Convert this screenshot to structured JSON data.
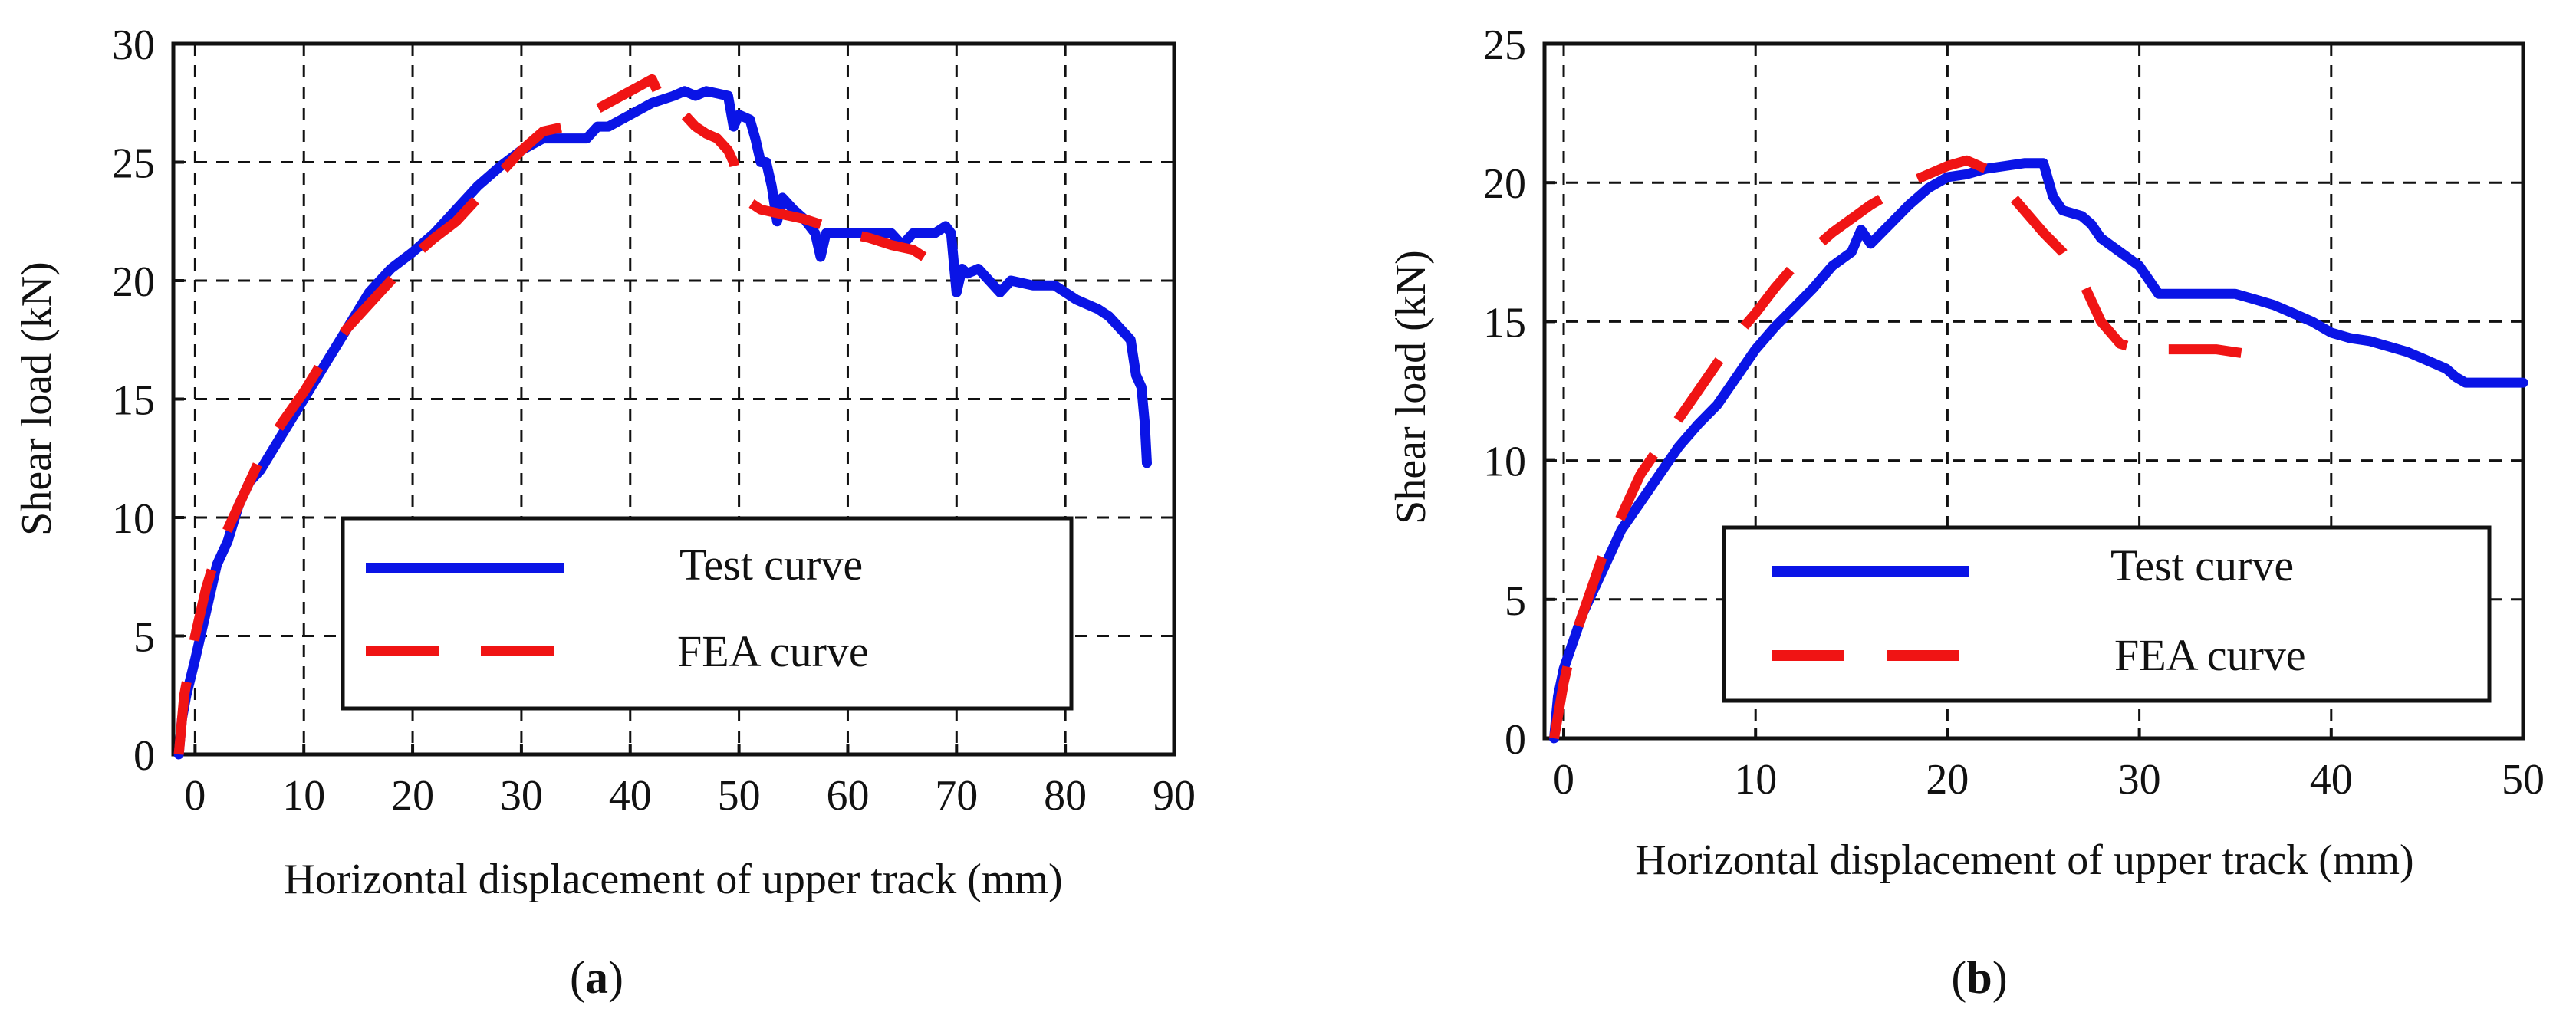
{
  "colors": {
    "test": "#0a14e6",
    "fea": "#f01414",
    "grid": "#111111",
    "axis": "#111111"
  },
  "chart_data": [
    {
      "type": "line",
      "panel_label": "a",
      "xlabel": "Horizontal displacement of upper track (mm)",
      "ylabel": "Shear load (kN)",
      "xlim": [
        -2,
        90
      ],
      "ylim": [
        0,
        30
      ],
      "xticks": [
        0,
        10,
        20,
        30,
        40,
        50,
        60,
        70,
        80,
        90
      ],
      "yticks": [
        0,
        5,
        10,
        15,
        20,
        25,
        30
      ],
      "grid": true,
      "legend_position": "bottom-right",
      "series": [
        {
          "name": "Test curve",
          "style": "solid",
          "points": [
            [
              -1.5,
              0
            ],
            [
              -1.2,
              1.5
            ],
            [
              -0.8,
              2.5
            ],
            [
              0,
              4
            ],
            [
              1,
              6
            ],
            [
              2,
              8
            ],
            [
              3,
              9
            ],
            [
              4,
              10.5
            ],
            [
              5,
              11.5
            ],
            [
              6,
              12
            ],
            [
              8,
              13.5
            ],
            [
              10,
              15
            ],
            [
              12,
              16.5
            ],
            [
              14,
              18
            ],
            [
              16,
              19.5
            ],
            [
              18,
              20.5
            ],
            [
              20,
              21.2
            ],
            [
              22,
              22
            ],
            [
              24,
              23
            ],
            [
              26,
              24
            ],
            [
              28,
              24.8
            ],
            [
              30,
              25.5
            ],
            [
              32,
              26
            ],
            [
              34,
              26
            ],
            [
              36,
              26
            ],
            [
              37,
              26.5
            ],
            [
              38,
              26.5
            ],
            [
              40,
              27
            ],
            [
              42,
              27.5
            ],
            [
              44,
              27.8
            ],
            [
              45,
              28
            ],
            [
              46,
              27.8
            ],
            [
              47,
              28
            ],
            [
              48,
              27.9
            ],
            [
              49,
              27.8
            ],
            [
              49.5,
              26.5
            ],
            [
              50,
              27
            ],
            [
              51,
              26.8
            ],
            [
              51.5,
              26
            ],
            [
              52,
              25
            ],
            [
              52.5,
              25
            ],
            [
              53,
              24
            ],
            [
              53.5,
              22.5
            ],
            [
              54,
              23.5
            ],
            [
              55,
              23
            ],
            [
              56,
              22.6
            ],
            [
              57,
              22
            ],
            [
              57.5,
              21
            ],
            [
              58,
              22
            ],
            [
              60,
              22
            ],
            [
              62,
              22
            ],
            [
              64,
              22
            ],
            [
              65,
              21.5
            ],
            [
              66,
              22
            ],
            [
              67,
              22
            ],
            [
              68,
              22
            ],
            [
              69,
              22.3
            ],
            [
              69.5,
              22
            ],
            [
              70,
              19.5
            ],
            [
              70.5,
              20.5
            ],
            [
              71,
              20.3
            ],
            [
              72,
              20.5
            ],
            [
              73,
              20
            ],
            [
              74,
              19.5
            ],
            [
              75,
              20
            ],
            [
              77,
              19.8
            ],
            [
              79,
              19.8
            ],
            [
              80,
              19.5
            ],
            [
              81,
              19.2
            ],
            [
              82,
              19
            ],
            [
              83,
              18.8
            ],
            [
              84,
              18.5
            ],
            [
              85,
              18
            ],
            [
              86,
              17.5
            ],
            [
              86.5,
              16
            ],
            [
              87,
              15.5
            ],
            [
              87.3,
              14
            ],
            [
              87.5,
              12.3
            ]
          ]
        },
        {
          "name": "FEA curve",
          "style": "dashed",
          "points": [
            [
              -1.5,
              0
            ],
            [
              -1,
              2.5
            ],
            [
              0,
              5
            ],
            [
              1,
              7
            ],
            [
              2,
              8.5
            ],
            [
              4,
              10.5
            ],
            [
              6,
              12.5
            ],
            [
              8,
              14
            ],
            [
              10,
              15.3
            ],
            [
              12,
              16.8
            ],
            [
              14,
              18
            ],
            [
              16,
              19
            ],
            [
              18,
              20
            ],
            [
              20,
              21
            ],
            [
              22,
              21.8
            ],
            [
              24,
              22.5
            ],
            [
              26,
              23.5
            ],
            [
              28,
              24.5
            ],
            [
              30,
              25.5
            ],
            [
              32,
              26.3
            ],
            [
              34,
              26.5
            ],
            [
              36,
              27
            ],
            [
              38,
              27.5
            ],
            [
              40,
              28
            ],
            [
              42,
              28.5
            ],
            [
              43,
              27.5
            ],
            [
              44,
              27
            ],
            [
              45,
              27
            ],
            [
              46,
              26.5
            ],
            [
              47,
              26.2
            ],
            [
              48,
              26
            ],
            [
              49,
              25.5
            ],
            [
              49.5,
              25
            ],
            [
              50,
              24
            ],
            [
              51,
              23.3
            ],
            [
              52,
              23
            ],
            [
              54,
              22.8
            ],
            [
              56,
              22.6
            ],
            [
              58,
              22.3
            ],
            [
              60,
              22
            ],
            [
              62,
              21.8
            ],
            [
              64,
              21.5
            ],
            [
              66,
              21.3
            ],
            [
              67,
              21
            ]
          ]
        }
      ]
    },
    {
      "type": "line",
      "panel_label": "b",
      "xlabel": "Horizontal displacement of upper track (mm)",
      "ylabel": "Shear load (kN)",
      "xlim": [
        -1,
        50
      ],
      "ylim": [
        0,
        25
      ],
      "xticks": [
        0,
        10,
        20,
        30,
        40,
        50
      ],
      "yticks": [
        0,
        5,
        10,
        15,
        20,
        25
      ],
      "grid": true,
      "legend_position": "bottom-right",
      "series": [
        {
          "name": "Test curve",
          "style": "solid",
          "points": [
            [
              -0.5,
              0
            ],
            [
              -0.3,
              1.5
            ],
            [
              0,
              2.5
            ],
            [
              0.5,
              3.5
            ],
            [
              1,
              4.5
            ],
            [
              2,
              6
            ],
            [
              3,
              7.5
            ],
            [
              4,
              8.5
            ],
            [
              5,
              9.5
            ],
            [
              6,
              10.5
            ],
            [
              7,
              11.3
            ],
            [
              8,
              12
            ],
            [
              9,
              13
            ],
            [
              10,
              14
            ],
            [
              11,
              14.8
            ],
            [
              12,
              15.5
            ],
            [
              13,
              16.2
            ],
            [
              14,
              17
            ],
            [
              15,
              17.5
            ],
            [
              15.5,
              18.3
            ],
            [
              16,
              17.8
            ],
            [
              17,
              18.5
            ],
            [
              18,
              19.2
            ],
            [
              19,
              19.8
            ],
            [
              20,
              20.2
            ],
            [
              21,
              20.3
            ],
            [
              22,
              20.5
            ],
            [
              23,
              20.6
            ],
            [
              24,
              20.7
            ],
            [
              25,
              20.7
            ],
            [
              25.5,
              19.5
            ],
            [
              26,
              19
            ],
            [
              27,
              18.8
            ],
            [
              27.5,
              18.5
            ],
            [
              28,
              18
            ],
            [
              29,
              17.5
            ],
            [
              30,
              17
            ],
            [
              30.5,
              16.5
            ],
            [
              31,
              16
            ],
            [
              32,
              16
            ],
            [
              33,
              16
            ],
            [
              35,
              16
            ],
            [
              36,
              15.8
            ],
            [
              37,
              15.6
            ],
            [
              38,
              15.3
            ],
            [
              39,
              15
            ],
            [
              40,
              14.6
            ],
            [
              41,
              14.4
            ],
            [
              42,
              14.3
            ],
            [
              43,
              14.1
            ],
            [
              44,
              13.9
            ],
            [
              45,
              13.6
            ],
            [
              46,
              13.3
            ],
            [
              46.5,
              13
            ],
            [
              47,
              12.8
            ],
            [
              48,
              12.8
            ],
            [
              49,
              12.8
            ],
            [
              50,
              12.8
            ]
          ]
        },
        {
          "name": "FEA curve",
          "style": "dashed",
          "points": [
            [
              -0.5,
              0
            ],
            [
              0,
              2
            ],
            [
              0.5,
              3.5
            ],
            [
              1,
              4.5
            ],
            [
              2,
              6.5
            ],
            [
              3,
              8
            ],
            [
              4,
              9.5
            ],
            [
              5,
              10.5
            ],
            [
              6,
              11.5
            ],
            [
              7,
              12.5
            ],
            [
              8,
              13.5
            ],
            [
              9,
              14.5
            ],
            [
              10,
              15.3
            ],
            [
              11,
              16.2
            ],
            [
              12,
              17
            ],
            [
              13,
              17.6
            ],
            [
              14,
              18.2
            ],
            [
              15,
              18.7
            ],
            [
              16,
              19.2
            ],
            [
              17,
              19.6
            ],
            [
              18,
              20
            ],
            [
              19,
              20.3
            ],
            [
              20,
              20.6
            ],
            [
              21,
              20.8
            ],
            [
              22,
              20.5
            ],
            [
              23,
              19.8
            ],
            [
              24,
              19
            ],
            [
              25,
              18.2
            ],
            [
              26,
              17.5
            ],
            [
              27,
              16.5
            ],
            [
              28,
              15
            ],
            [
              29,
              14.2
            ],
            [
              30,
              14
            ],
            [
              31,
              14
            ],
            [
              32,
              14
            ],
            [
              33,
              14
            ],
            [
              34,
              14
            ],
            [
              35,
              13.9
            ],
            [
              36,
              13.8
            ]
          ]
        }
      ]
    }
  ]
}
